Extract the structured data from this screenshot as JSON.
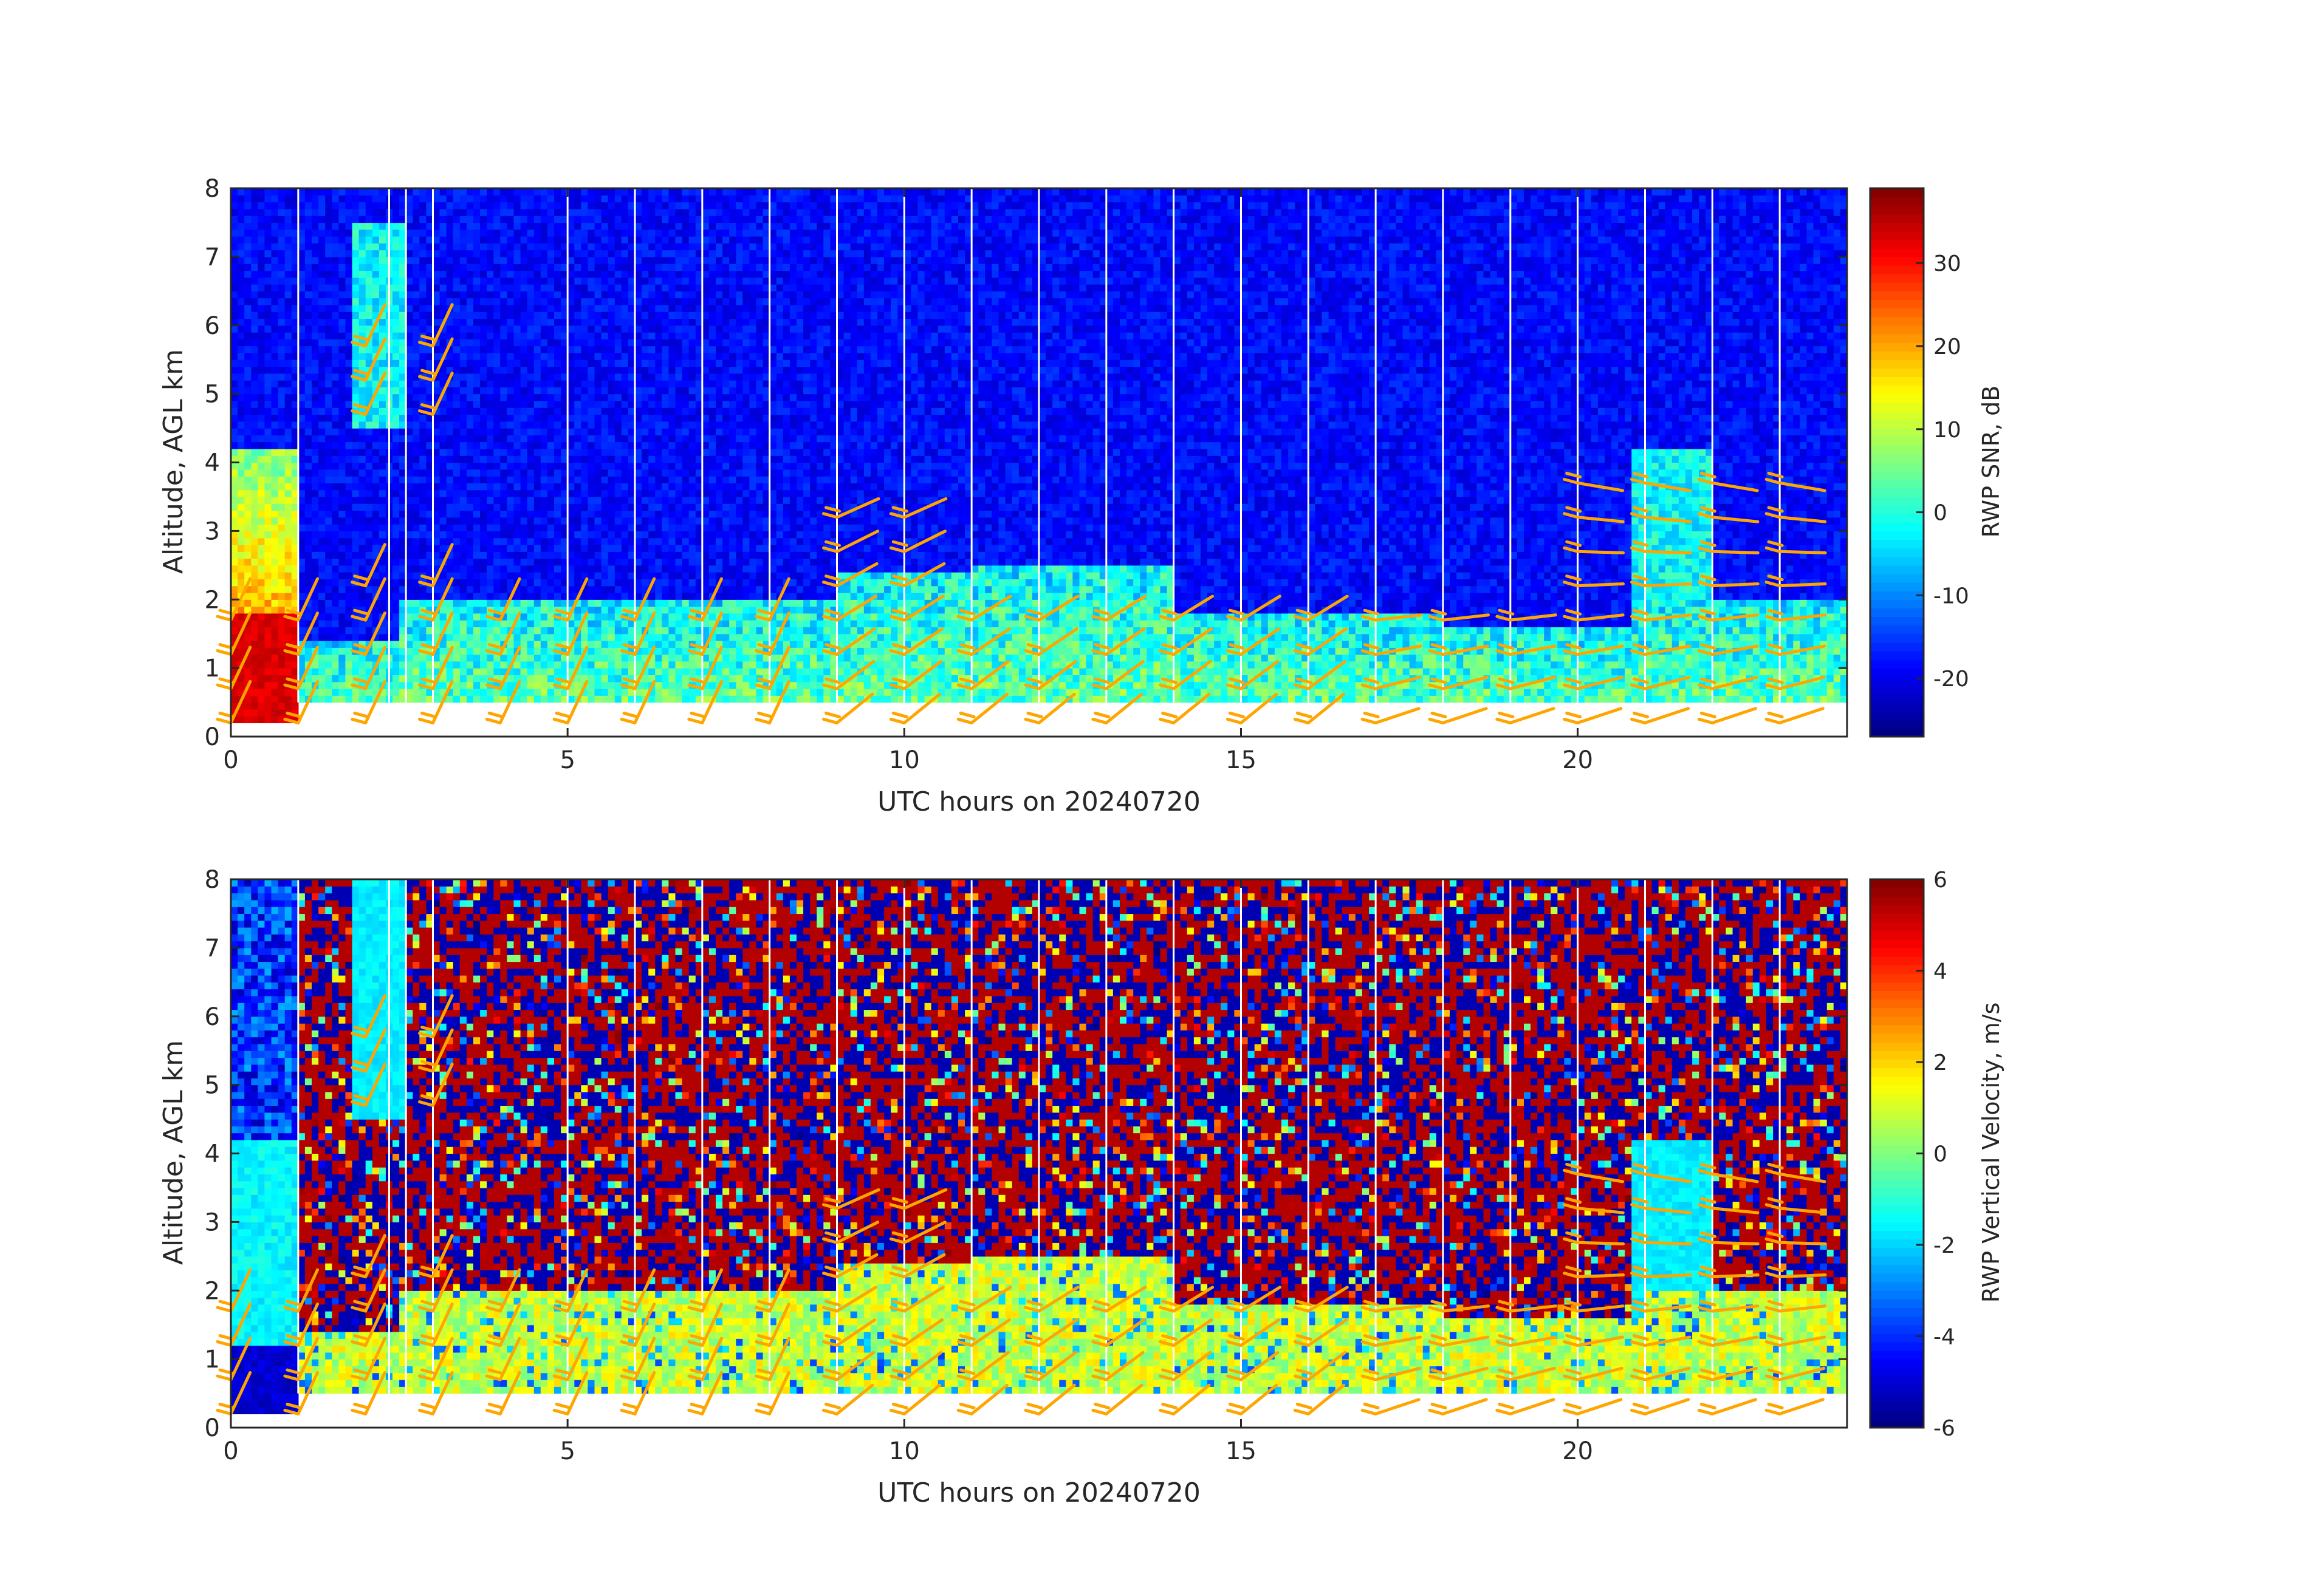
{
  "chart_data": [
    {
      "type": "heatmap",
      "title": "",
      "xlabel": "UTC hours on 20240720",
      "ylabel": "Altitude, AGL km",
      "xlim": [
        0,
        24
      ],
      "ylim": [
        0,
        8
      ],
      "xticks": [
        "0",
        "5",
        "10",
        "15",
        "20"
      ],
      "yticks": [
        "0",
        "1",
        "2",
        "3",
        "4",
        "5",
        "6",
        "7",
        "8"
      ],
      "colorbar": {
        "label": "RWP SNR, dB",
        "range": [
          -27,
          39
        ],
        "ticks": [
          "-20",
          "-10",
          "0",
          "10",
          "20",
          "30"
        ],
        "colormap": "jet"
      },
      "field": "snr",
      "overlay": "wind barbs (orange) at hourly columns"
    },
    {
      "type": "heatmap",
      "title": "",
      "xlabel": "UTC hours on 20240720",
      "ylabel": "Altitude, AGL km",
      "xlim": [
        0,
        24
      ],
      "ylim": [
        0,
        8
      ],
      "xticks": [
        "0",
        "5",
        "10",
        "15",
        "20"
      ],
      "yticks": [
        "0",
        "1",
        "2",
        "3",
        "4",
        "5",
        "6",
        "7",
        "8"
      ],
      "colorbar": {
        "label": "RWP Vertical Velocity, m/s",
        "range": [
          -6,
          6
        ],
        "ticks": [
          "-6",
          "-4",
          "-2",
          "0",
          "2",
          "4",
          "6"
        ],
        "colormap": "jet"
      },
      "field": "vertical_velocity",
      "overlay": "wind barbs (orange) at hourly columns"
    }
  ],
  "colors": {
    "barb": "#ffa500",
    "axis": "#262626",
    "gap": "#ffffff"
  }
}
